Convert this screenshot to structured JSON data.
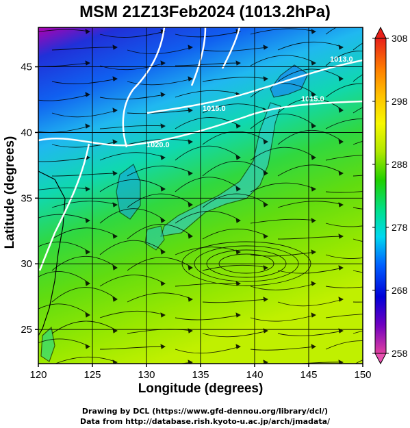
{
  "title": "MSM 21Z13Feb2024 (1013.2hPa)",
  "map": {
    "xlabel": "Longitude (degrees)",
    "ylabel": "Latitude  (degrees)",
    "lon_range": [
      120,
      150
    ],
    "lat_range": [
      22.4,
      48
    ],
    "lon_ticks": [
      "120",
      "125",
      "130",
      "135",
      "140",
      "145",
      "150"
    ],
    "lat_ticks": [
      "25",
      "30",
      "35",
      "40",
      "45"
    ],
    "isobar_labels": [
      "1015.0",
      "1020.0",
      "1015.0",
      "1013.0"
    ]
  },
  "colorbar": {
    "ticks": [
      "308",
      "298",
      "288",
      "278",
      "268",
      "258"
    ],
    "min": 258,
    "max": 308,
    "colors": [
      "#e0207a",
      "#b000c8",
      "#4a00c8",
      "#0000e0",
      "#0060ff",
      "#00b8ff",
      "#00e8e0",
      "#00e070",
      "#20d000",
      "#80e000",
      "#d8f000",
      "#f8f800",
      "#ffc000",
      "#ff8000",
      "#ff3000",
      "#e8201a"
    ]
  },
  "credits": {
    "line1": "Drawing by DCL (https://www.gfd-dennou.org/library/dcl/)",
    "line2": "Data from http://database.rish.kyoto-u.ac.jp/arch/jmadata/"
  }
}
